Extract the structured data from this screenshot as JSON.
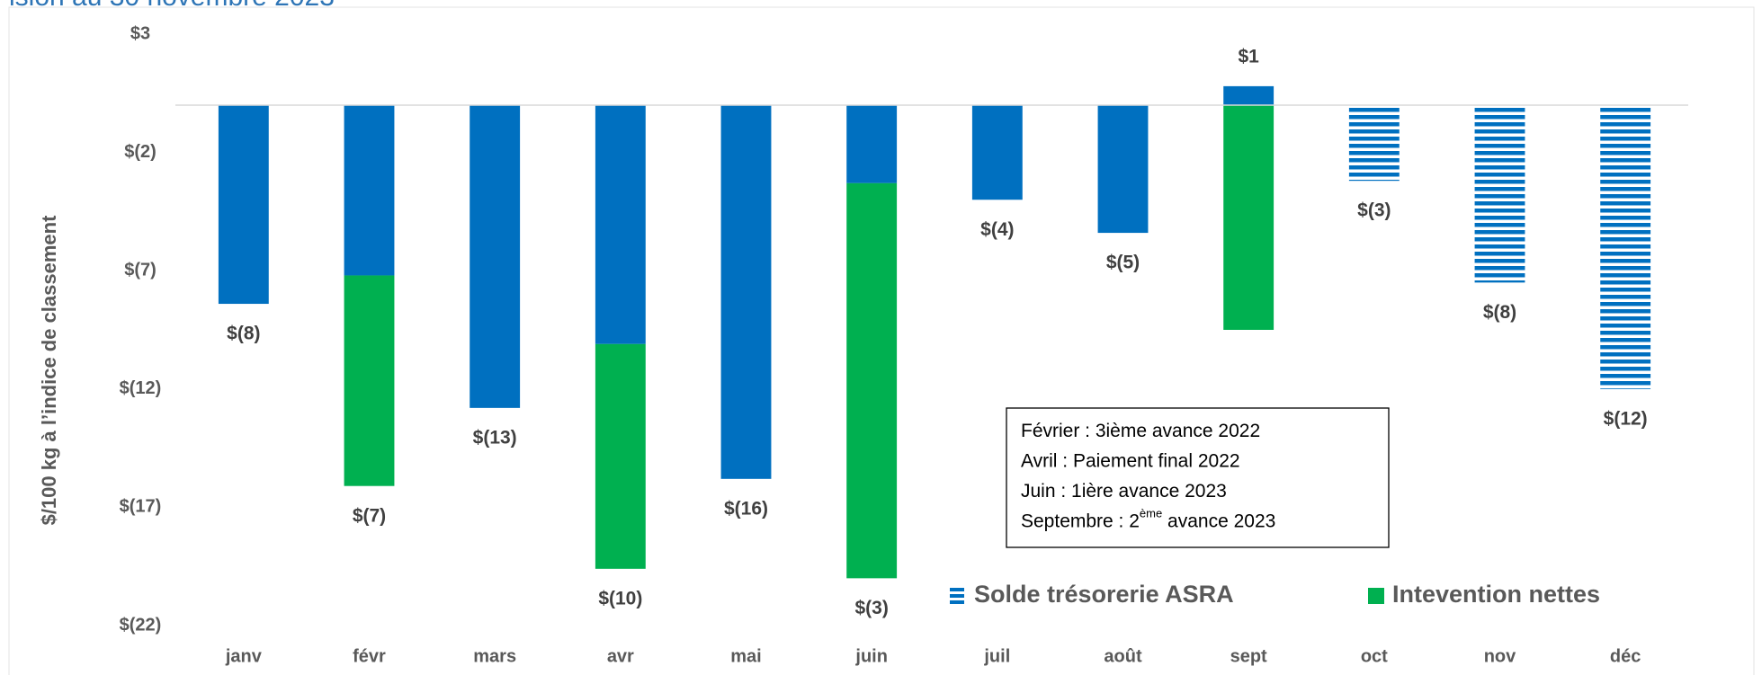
{
  "chart_data": {
    "type": "stacked_bar",
    "title": "ision au 30 novembre 2023",
    "y_label": "$/100 kg à l’indice de classement",
    "categories": [
      "janv",
      "févr",
      "mars",
      "avr",
      "mai",
      "juin",
      "juil",
      "août",
      "sept",
      "oct",
      "nov",
      "déc"
    ],
    "series": [
      {
        "name": "Solde trésorerie ASRA",
        "color": "#0070c0",
        "values": [
          -8.4,
          -7.2,
          -12.8,
          -10.1,
          -15.8,
          -3.3,
          -4.0,
          -5.4,
          0.8,
          -3.2,
          -7.5,
          -12.0
        ],
        "value_labels": [
          "$(8)",
          "$(7)",
          "$(13)",
          "$(10)",
          "$(16)",
          "$(3)",
          "$(4)",
          "$(5)",
          "$1",
          "$(3)",
          "$(8)",
          "$(12)"
        ],
        "fill_styles": [
          "solid",
          "solid",
          "solid",
          "solid",
          "solid",
          "solid",
          "solid",
          "solid",
          "solid",
          "striped",
          "striped",
          "striped"
        ]
      },
      {
        "name": "Intevention nettes",
        "color": "#00b050",
        "values": [
          null,
          -8.9,
          null,
          -9.5,
          null,
          -16.7,
          null,
          null,
          -9.5,
          null,
          null,
          null
        ]
      }
    ],
    "ylim": [
      -22,
      3
    ],
    "yticks": [
      {
        "value": 3,
        "label": "$3"
      },
      {
        "value": -2,
        "label": "$(2)"
      },
      {
        "value": -7,
        "label": "$(7)"
      },
      {
        "value": -12,
        "label": "$(12)"
      },
      {
        "value": -17,
        "label": "$(17)"
      },
      {
        "value": -22,
        "label": "$(22)"
      }
    ],
    "grid": false,
    "annotation": [
      [
        {
          "text": "Février :  3ième avance 2022"
        }
      ],
      [
        {
          "text": "Avril : Paiement final 2022"
        }
      ],
      [
        {
          "text": "Juin : 1ière avance 2023"
        }
      ],
      [
        {
          "text": "Septembre : 2"
        },
        {
          "sup": "ème"
        },
        {
          "text": " avance 2023"
        }
      ]
    ]
  }
}
